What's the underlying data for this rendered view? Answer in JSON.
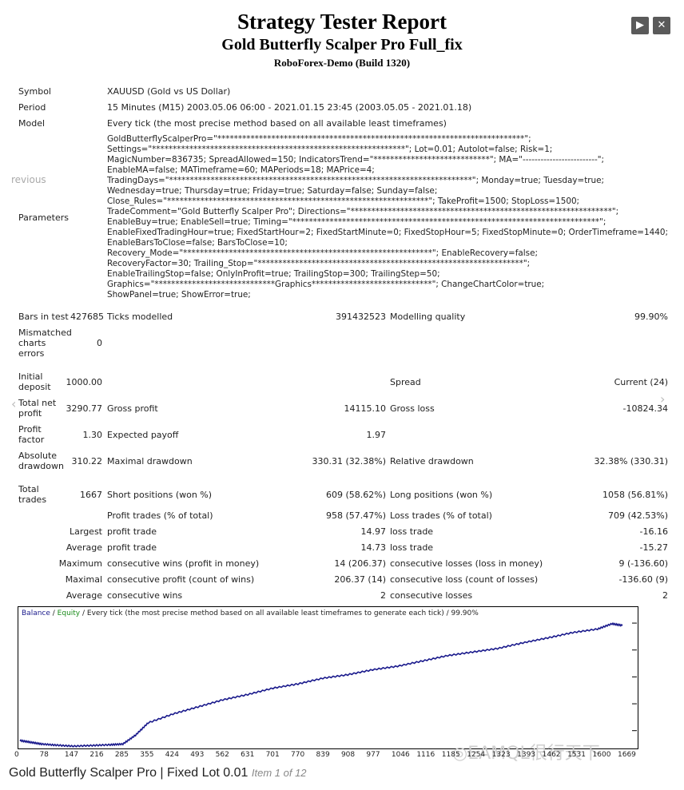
{
  "header": {
    "title": "Strategy Tester Report",
    "strategy": "Gold Butterfly Scalper Pro Full_fix",
    "broker": "RoboForex-Demo (Build 1320)"
  },
  "nav": {
    "next": "▶",
    "close": "✕"
  },
  "side": {
    "prev": "revious"
  },
  "summary": {
    "symbol_label": "Symbol",
    "symbol": "XAUUSD (Gold vs US Dollar)",
    "period_label": "Period",
    "period": "15 Minutes (M15) 2003.05.06 06:00 - 2021.01.15 23:45 (2003.05.05 - 2021.01.18)",
    "model_label": "Model",
    "model": "Every tick (the most precise method based on all available least timeframes)",
    "parameters_label": "Parameters",
    "parameters": "GoldButterflyScalperPro=\"**************************************************************************\";\nSettings=\"*************************************************************\"; Lot=0.01; Autolot=false; Risk=1;\nMagicNumber=836735; SpreadAllowed=150; IndicatorsTrend=\"****************************\"; MA=\"-------------------------\";\nEnableMA=false; MATimeframe=60; MAPeriods=18; MAPrice=4;\nTradingDays=\"*************************************************************************\"; Monday=true; Tuesday=true;\nWednesday=true; Thursday=true; Friday=true; Saturday=false; Sunday=false;\nClose_Rules=\"***************************************************************\"; TakeProfit=1500; StopLoss=1500;\nTradeComment=\"Gold Butterfly Scalper Pro\"; Directions=\"***************************************************************\";\nEnableBuy=true; EnableSell=true; Timing=\"**************************************************************************\";\nEnableFixedTradingHour=true; FixedStartHour=2; FixedStartMinute=0; FixedStopHour=5; FixedStopMinute=0; OrderTimeframe=1440;\nEnableBarsToClose=false; BarsToClose=10;\nRecovery_Mode=\"************************************************************\"; EnableRecovery=false;\nRecoveryFactor=30; Trailing_Stop=\"****************************************************************\";\nEnableTrailingStop=false; OnlyInProfit=true; TrailingStop=300; TrailingStep=50;\nGraphics=\"*****************************Graphics*****************************\"; ChangeChartColor=true;\nShowPanel=true; ShowError=true;"
  },
  "stats": {
    "bars_label": "Bars in test",
    "bars": "427685",
    "ticks_label": "Ticks modelled",
    "ticks": "391432523",
    "quality_label": "Modelling quality",
    "quality": "99.90%",
    "mismatch_label": "Mismatched charts errors",
    "mismatch": "0",
    "deposit_label": "Initial deposit",
    "deposit": "1000.00",
    "spread_label": "Spread",
    "spread": "Current (24)",
    "netprofit_label": "Total net profit",
    "netprofit": "3290.77",
    "grossprofit_label": "Gross profit",
    "grossprofit": "14115.10",
    "grossloss_label": "Gross loss",
    "grossloss": "-10824.34",
    "pf_label": "Profit factor",
    "pf": "1.30",
    "payoff_label": "Expected payoff",
    "payoff": "1.97",
    "absdd_label": "Absolute drawdown",
    "absdd": "310.22",
    "maxdd_label": "Maximal drawdown",
    "maxdd": "330.31 (32.38%)",
    "reldd_label": "Relative drawdown",
    "reldd": "32.38% (330.31)",
    "trades_label": "Total trades",
    "trades": "1667",
    "short_label": "Short positions (won %)",
    "short": "609 (58.62%)",
    "long_label": "Long positions (won %)",
    "long": "1058 (56.81%)",
    "ptrades_label": "Profit trades (% of total)",
    "ptrades": "958 (57.47%)",
    "ltrades_label": "Loss trades (% of total)",
    "ltrades": "709 (42.53%)",
    "largest": "Largest",
    "lp_label": "profit trade",
    "lp": "14.97",
    "ll_label": "loss trade",
    "ll": "-16.16",
    "average": "Average",
    "ap_label": "profit trade",
    "ap": "14.73",
    "al_label": "loss trade",
    "al": "-15.27",
    "maximum": "Maximum",
    "mcw_label": "consecutive wins (profit in money)",
    "mcw": "14 (206.37)",
    "mcl_label": "consecutive losses (loss in money)",
    "mcl": "9 (-136.60)",
    "maximal": "Maximal",
    "mcp_label": "consecutive profit (count of wins)",
    "mcp": "206.37 (14)",
    "mcls_label": "consecutive loss (count of losses)",
    "mcls": "-136.60 (9)",
    "average2": "Average",
    "acw_label": "consecutive wins",
    "acw": "2",
    "acl_label": "consecutive losses",
    "acl": "2"
  },
  "chart_legend": {
    "balance": "Balance",
    "sep1": " / ",
    "equity": "Equity",
    "rest": " / Every tick (the most precise method based on all available least timeframes to generate each tick) / 99.90%"
  },
  "colors": {
    "balance": "#1a1a8c",
    "equity": "#1a8c1a",
    "header": "#000000"
  },
  "chart_data": {
    "type": "line",
    "x_ticks": [
      "0",
      "78",
      "147",
      "216",
      "285",
      "355",
      "424",
      "493",
      "562",
      "631",
      "701",
      "770",
      "839",
      "908",
      "977",
      "1046",
      "1116",
      "1185",
      "1254",
      "1323",
      "1393",
      "1462",
      "1531",
      "1600",
      "1669"
    ],
    "y_ticks": [
      "4318",
      "3558",
      "2798",
      "2038",
      "1279"
    ],
    "ylim": [
      798,
      4500
    ],
    "xlim": [
      0,
      1700
    ],
    "series": [
      {
        "name": "Balance",
        "x": [
          0,
          30,
          60,
          100,
          147,
          200,
          250,
          285,
          320,
          355,
          424,
          493,
          562,
          631,
          701,
          770,
          839,
          908,
          977,
          1046,
          1116,
          1185,
          1254,
          1323,
          1393,
          1462,
          1531,
          1600,
          1640,
          1669
        ],
        "values": [
          1000,
          950,
          900,
          870,
          840,
          860,
          880,
          900,
          1150,
          1500,
          1750,
          1950,
          2150,
          2300,
          2480,
          2600,
          2760,
          2860,
          3000,
          3100,
          3250,
          3400,
          3500,
          3600,
          3760,
          3900,
          4050,
          4150,
          4300,
          4250
        ]
      }
    ]
  },
  "watermark": "◎EAMQL很行天下",
  "footer": {
    "title": "Gold Butterfly Scalper Pro | Fixed Lot 0.01",
    "item": "Item 1 of 12"
  }
}
